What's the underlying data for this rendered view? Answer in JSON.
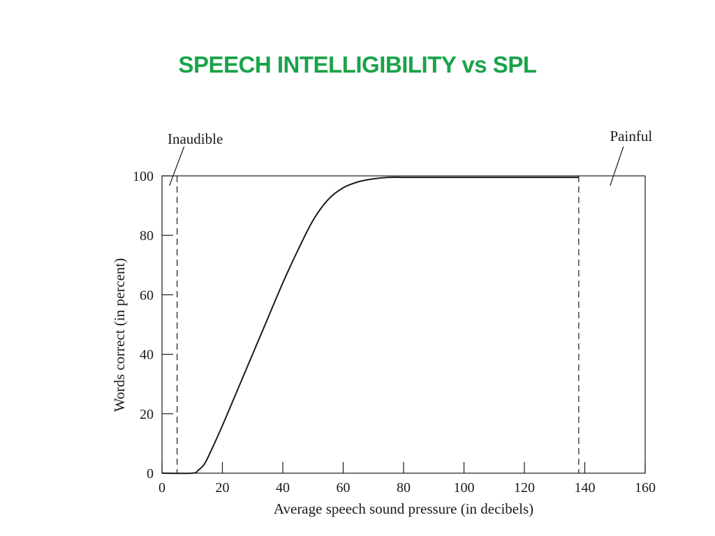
{
  "slide": {
    "title": "SPEECH INTELLIGIBILITY vs SPL",
    "title_color": "#1aa34a"
  },
  "chart_data": {
    "type": "line",
    "xlabel": "Average speech sound pressure (in decibels)",
    "ylabel": "Words correct (in percent)",
    "xlim": [
      0,
      160
    ],
    "ylim": [
      0,
      100
    ],
    "xticks": [
      0,
      20,
      40,
      60,
      80,
      100,
      120,
      140,
      160
    ],
    "yticks": [
      0,
      20,
      40,
      60,
      80,
      100
    ],
    "grid": false,
    "series": [
      {
        "x": [
          0,
          10,
          12,
          14,
          16,
          20,
          25,
          30,
          35,
          40,
          45,
          50,
          55,
          60,
          65,
          70,
          75,
          80,
          90,
          100,
          120,
          138
        ],
        "y": [
          0,
          0,
          1,
          3,
          7,
          16,
          28,
          40,
          52,
          64,
          75,
          85,
          92,
          96,
          98,
          99,
          99.5,
          99.5,
          99.5,
          99.5,
          99.5,
          99.5
        ]
      }
    ],
    "thresholds": [
      {
        "x": 5,
        "label": "Inaudible"
      },
      {
        "x": 138,
        "label": "Painful"
      }
    ],
    "line_color": "#1a1a1a"
  }
}
